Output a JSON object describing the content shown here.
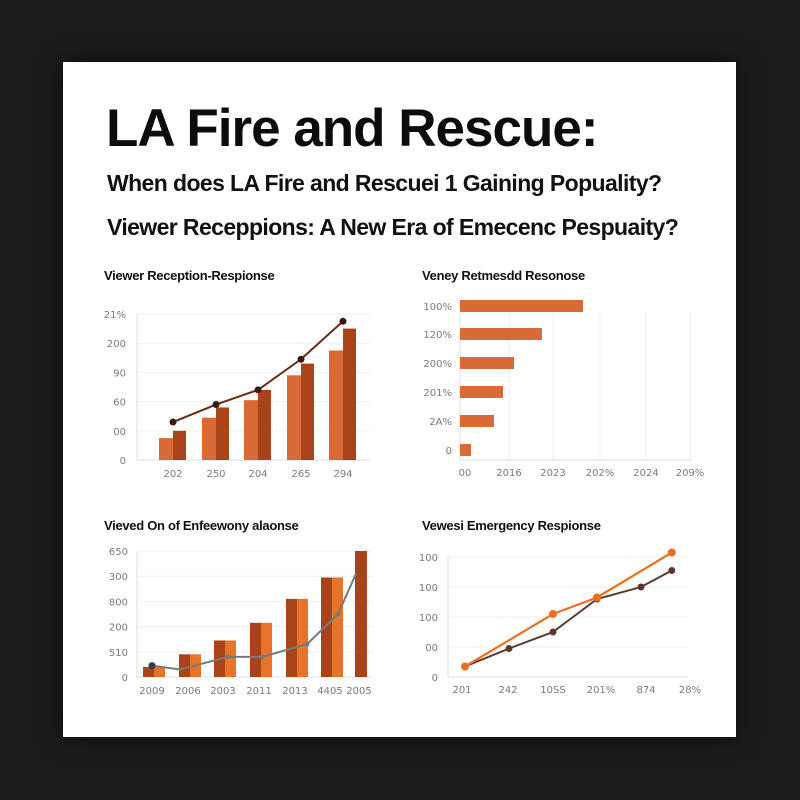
{
  "header": {
    "title": "LA Fire and Rescue:",
    "subtitle_1": "When does LA Fire and Rescuei 1 Gaining Popuality?",
    "subtitle_2": "Viewer Receppions: A New Era of Emecenc Pespuaity?"
  },
  "colors": {
    "background": "#1c1c1c",
    "card": "#ffffff",
    "bar_light": "#d96a35",
    "bar_dark": "#a8431a",
    "line_dark": "#6b2a14",
    "bar_orange": "#e8742a",
    "line_gray": "#7a7a7a",
    "line_orange": "#ea7020",
    "line_brown": "#5a3a30"
  },
  "chart_data": [
    {
      "id": "chart1",
      "type": "bar",
      "title": "Viewer Reception-Respionse",
      "categories": [
        "202",
        "250",
        "204",
        "265",
        "294"
      ],
      "y_tick_labels": [
        "0",
        "00",
        "60",
        "90",
        "200",
        "21%"
      ],
      "ylim": [
        0,
        5
      ],
      "series": [
        {
          "name": "series-light",
          "kind": "bar",
          "values": [
            0.75,
            1.45,
            2.05,
            2.9,
            3.75
          ]
        },
        {
          "name": "series-dark",
          "kind": "bar",
          "values": [
            1.0,
            1.8,
            2.4,
            3.3,
            4.5
          ]
        },
        {
          "name": "trend-line",
          "kind": "line",
          "values": [
            1.3,
            1.9,
            2.4,
            3.45,
            4.75
          ]
        }
      ],
      "xlabel": "",
      "ylabel": "",
      "grid": true
    },
    {
      "id": "chart2",
      "type": "bar",
      "orientation": "horizontal",
      "title": "Veney Retmesdd Resonose",
      "categories": [
        "100%",
        "120%",
        "200%",
        "201%",
        "2A%",
        "0"
      ],
      "values": [
        123,
        82,
        54,
        43,
        34,
        11
      ],
      "x_tick_labels": [
        "00",
        "2016",
        "2023",
        "202%",
        "2024",
        "209%"
      ],
      "xlim": [
        0,
        230
      ],
      "xlabel": "",
      "ylabel": "",
      "grid": true
    },
    {
      "id": "chart3",
      "type": "bar",
      "title": "Vieved On of Enfeewony alaonse",
      "categories": [
        "2009",
        "2006",
        "2003",
        "2011",
        "2013",
        "4405",
        "2005"
      ],
      "y_tick_labels": [
        "0",
        "510",
        "200",
        "800",
        "300",
        "650"
      ],
      "ylim": [
        0,
        5
      ],
      "series": [
        {
          "name": "bars",
          "kind": "bar",
          "values": [
            0.4,
            0.9,
            1.45,
            2.15,
            3.1,
            3.95,
            5.0
          ]
        },
        {
          "name": "trend-line",
          "kind": "line",
          "values": [
            0.45,
            0.3,
            0.8,
            0.8,
            1.3,
            2.5,
            4.1
          ]
        }
      ],
      "xlabel": "",
      "ylabel": "",
      "grid": true
    },
    {
      "id": "chart4",
      "type": "line",
      "title": "Vewesi Emergency Respionse",
      "categories": [
        "201",
        "242",
        "10SS",
        "201%",
        "874",
        "28%"
      ],
      "y_tick_labels": [
        "0",
        "00",
        "100",
        "100",
        "100"
      ],
      "ylim": [
        0,
        4
      ],
      "series": [
        {
          "name": "orange-series",
          "points": [
            [
              0,
              0.35
            ],
            [
              2,
              2.1
            ],
            [
              3,
              2.65
            ],
            [
              4.7,
              4.15
            ]
          ]
        },
        {
          "name": "brown-series",
          "points": [
            [
              0,
              0.35
            ],
            [
              1,
              0.95
            ],
            [
              2,
              1.5
            ],
            [
              3,
              2.6
            ],
            [
              4,
              3.0
            ],
            [
              4.7,
              3.55
            ]
          ]
        }
      ],
      "xlabel": "",
      "ylabel": "",
      "grid": true
    }
  ]
}
